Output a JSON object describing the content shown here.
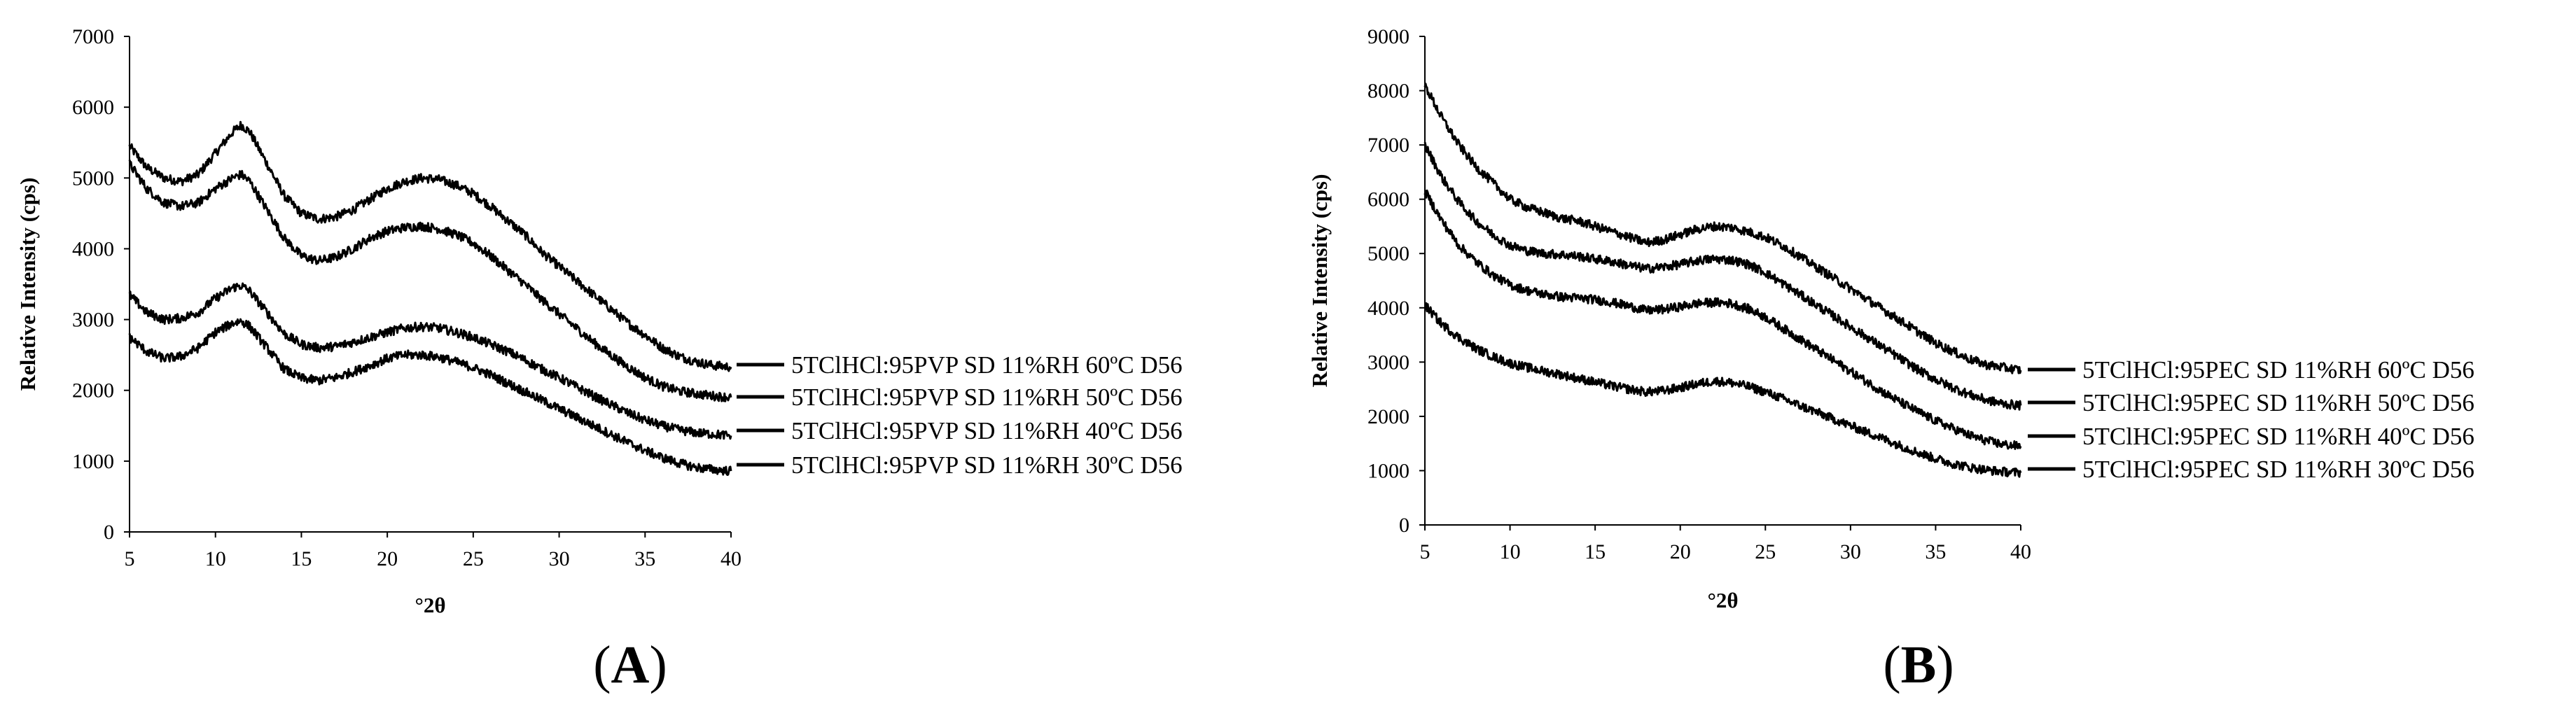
{
  "chart_data": [
    {
      "type": "line",
      "panel_label": "A",
      "xlabel": "°2θ",
      "ylabel": "Relative Intensity (cps)",
      "xlim": [
        5,
        40
      ],
      "ylim": [
        0,
        7000
      ],
      "xticks": [
        5,
        10,
        15,
        20,
        25,
        30,
        35,
        40
      ],
      "yticks": [
        0,
        1000,
        2000,
        3000,
        4000,
        5000,
        6000,
        7000
      ],
      "grid": false,
      "legend_position": "right",
      "line_color": "#000000",
      "series": [
        {
          "name": "5TClHCl:95PVP SD 11%RH 60ºC D56",
          "x": [
            5,
            6,
            7,
            8,
            9,
            10,
            11,
            11.5,
            12,
            13,
            14,
            15,
            16,
            17,
            18,
            19,
            20,
            21,
            22,
            23,
            24,
            25,
            26,
            27,
            28,
            29,
            30,
            31,
            32,
            33,
            34,
            35,
            36,
            37,
            38,
            39,
            40
          ],
          "y": [
            5450,
            5150,
            5000,
            4950,
            5050,
            5350,
            5650,
            5750,
            5650,
            5200,
            4750,
            4500,
            4420,
            4450,
            4550,
            4700,
            4850,
            4950,
            5000,
            4980,
            4900,
            4780,
            4600,
            4400,
            4200,
            3950,
            3750,
            3550,
            3350,
            3150,
            2950,
            2780,
            2600,
            2480,
            2400,
            2350,
            2330
          ]
        },
        {
          "name": "5TClHCl:95PVP SD 11%RH 50ºC D56",
          "x": [
            5,
            6,
            7,
            8,
            9,
            10,
            11,
            11.5,
            12,
            13,
            14,
            15,
            16,
            17,
            18,
            19,
            20,
            21,
            22,
            23,
            24,
            25,
            26,
            27,
            28,
            29,
            30,
            31,
            32,
            33,
            34,
            35,
            36,
            37,
            38,
            39,
            40
          ],
          "y": [
            5200,
            4850,
            4650,
            4600,
            4650,
            4850,
            5000,
            5050,
            4950,
            4550,
            4150,
            3900,
            3830,
            3880,
            4000,
            4150,
            4250,
            4300,
            4320,
            4280,
            4200,
            4080,
            3900,
            3700,
            3500,
            3280,
            3080,
            2880,
            2680,
            2500,
            2330,
            2180,
            2060,
            1990,
            1950,
            1920,
            1900
          ]
        },
        {
          "name": "5TClHCl:95PVP SD 11%RH 40ºC D56",
          "x": [
            5,
            6,
            7,
            8,
            9,
            10,
            11,
            11.5,
            12,
            13,
            14,
            15,
            16,
            17,
            18,
            19,
            20,
            21,
            22,
            23,
            24,
            25,
            26,
            27,
            28,
            29,
            30,
            31,
            32,
            33,
            34,
            35,
            36,
            37,
            38,
            39,
            40
          ],
          "y": [
            3350,
            3100,
            3000,
            3020,
            3100,
            3300,
            3450,
            3480,
            3400,
            3100,
            2800,
            2650,
            2600,
            2620,
            2680,
            2750,
            2820,
            2880,
            2900,
            2880,
            2820,
            2750,
            2650,
            2550,
            2430,
            2300,
            2180,
            2050,
            1920,
            1800,
            1680,
            1580,
            1500,
            1440,
            1400,
            1380,
            1360
          ]
        },
        {
          "name": "5TClHCl:95PVP SD 11%RH 30ºC D56",
          "x": [
            5,
            6,
            7,
            8,
            9,
            10,
            11,
            11.5,
            12,
            13,
            14,
            15,
            16,
            17,
            18,
            19,
            20,
            21,
            22,
            23,
            24,
            25,
            26,
            27,
            28,
            29,
            30,
            31,
            32,
            33,
            34,
            35,
            36,
            37,
            38,
            39,
            40
          ],
          "y": [
            2750,
            2550,
            2450,
            2480,
            2600,
            2820,
            2950,
            2980,
            2900,
            2600,
            2300,
            2170,
            2140,
            2180,
            2260,
            2350,
            2450,
            2500,
            2500,
            2470,
            2400,
            2320,
            2220,
            2100,
            1980,
            1860,
            1740,
            1620,
            1500,
            1380,
            1260,
            1150,
            1050,
            970,
            910,
            880,
            860
          ]
        }
      ]
    },
    {
      "type": "line",
      "panel_label": "B",
      "xlabel": "°2θ",
      "ylabel": "Relative Intensity (cps)",
      "xlim": [
        5,
        40
      ],
      "ylim": [
        0,
        9000
      ],
      "xticks": [
        5,
        10,
        15,
        20,
        25,
        30,
        35,
        40
      ],
      "yticks": [
        0,
        1000,
        2000,
        3000,
        4000,
        5000,
        6000,
        7000,
        8000,
        9000
      ],
      "grid": false,
      "legend_position": "right",
      "line_color": "#000000",
      "series": [
        {
          "name": "5TClHCl:95PEC SD 11%RH 60ºC D56",
          "x": [
            5,
            6,
            7,
            8,
            9,
            10,
            11,
            12,
            13,
            14,
            15,
            16,
            17,
            18,
            19,
            20,
            21,
            22,
            23,
            24,
            25,
            26,
            27,
            28,
            29,
            30,
            31,
            32,
            33,
            34,
            35,
            36,
            37,
            38,
            39,
            40
          ],
          "y": [
            8100,
            7500,
            7000,
            6600,
            6300,
            6000,
            5850,
            5750,
            5650,
            5600,
            5500,
            5400,
            5300,
            5200,
            5250,
            5350,
            5450,
            5500,
            5480,
            5400,
            5300,
            5150,
            4950,
            4750,
            4550,
            4350,
            4150,
            3950,
            3750,
            3550,
            3350,
            3200,
            3050,
            2950,
            2900,
            2850
          ]
        },
        {
          "name": "5TClHCl:95PEC SD 11%RH 50ºC D56",
          "x": [
            5,
            6,
            7,
            8,
            9,
            10,
            11,
            12,
            13,
            14,
            15,
            16,
            17,
            18,
            19,
            20,
            21,
            22,
            23,
            24,
            25,
            26,
            27,
            28,
            29,
            30,
            31,
            32,
            33,
            34,
            35,
            36,
            37,
            38,
            39,
            40
          ],
          "y": [
            7000,
            6400,
            5950,
            5600,
            5350,
            5150,
            5050,
            5000,
            4980,
            4950,
            4900,
            4850,
            4780,
            4720,
            4750,
            4800,
            4870,
            4900,
            4880,
            4800,
            4650,
            4450,
            4250,
            4050,
            3850,
            3650,
            3450,
            3250,
            3050,
            2850,
            2680,
            2530,
            2400,
            2300,
            2230,
            2200
          ]
        },
        {
          "name": "5TClHCl:95PEC SD 11%RH 40ºC D56",
          "x": [
            5,
            6,
            7,
            8,
            9,
            10,
            11,
            12,
            13,
            14,
            15,
            16,
            17,
            18,
            19,
            20,
            21,
            22,
            23,
            24,
            25,
            26,
            27,
            28,
            29,
            30,
            31,
            32,
            33,
            34,
            35,
            36,
            37,
            38,
            39,
            40
          ],
          "y": [
            6150,
            5600,
            5150,
            4850,
            4600,
            4420,
            4320,
            4250,
            4200,
            4180,
            4150,
            4100,
            4030,
            3950,
            3970,
            4020,
            4080,
            4100,
            4080,
            3980,
            3830,
            3630,
            3430,
            3230,
            3030,
            2830,
            2630,
            2430,
            2250,
            2080,
            1920,
            1780,
            1650,
            1550,
            1480,
            1450
          ]
        },
        {
          "name": "5TClHCl:95PEC SD 11%RH 30ºC D56",
          "x": [
            5,
            6,
            7,
            8,
            9,
            10,
            11,
            12,
            13,
            14,
            15,
            16,
            17,
            18,
            19,
            20,
            21,
            22,
            23,
            24,
            25,
            26,
            27,
            28,
            29,
            30,
            31,
            32,
            33,
            34,
            35,
            36,
            37,
            38,
            39,
            40
          ],
          "y": [
            4050,
            3700,
            3450,
            3250,
            3100,
            2980,
            2900,
            2830,
            2770,
            2700,
            2630,
            2560,
            2500,
            2450,
            2470,
            2530,
            2600,
            2650,
            2620,
            2550,
            2450,
            2330,
            2200,
            2080,
            1950,
            1830,
            1700,
            1580,
            1450,
            1330,
            1220,
            1130,
            1060,
            1010,
            980,
            960
          ]
        }
      ]
    }
  ]
}
